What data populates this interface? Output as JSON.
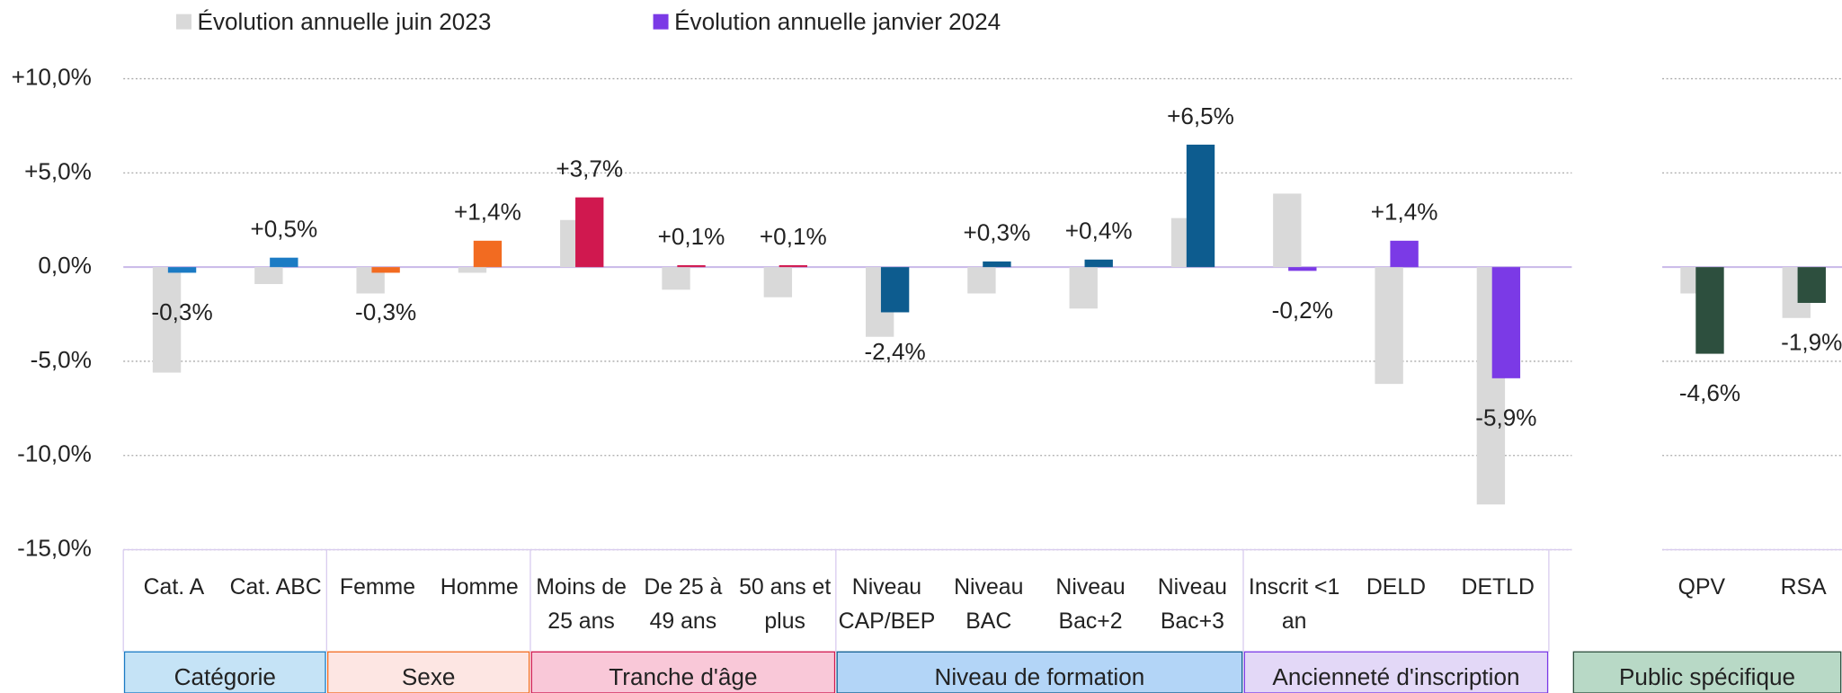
{
  "chart_data": {
    "type": "bar",
    "categories": [
      "Cat. A",
      "Cat. ABC",
      "Femme",
      "Homme",
      "Moins de 25 ans",
      "De 25 à 49 ans",
      "50 ans et plus",
      "Niveau CAP/BEP",
      "Niveau BAC",
      "Niveau Bac+2",
      "Niveau Bac+3",
      "Inscrit <1 an",
      "DELD",
      "DETLD",
      "QPV",
      "RSA"
    ],
    "series": [
      {
        "name": "Évolution annuelle juin 2023",
        "color": "#d9d9d9",
        "values": [
          -5.6,
          -0.9,
          -1.4,
          -0.3,
          2.5,
          -1.2,
          -1.6,
          -3.7,
          -1.4,
          -2.2,
          2.6,
          3.9,
          -6.2,
          -12.6,
          -1.4,
          -2.7
        ]
      },
      {
        "name": "Évolution annuelle janvier 2024",
        "color": "#7b3ae6",
        "values": [
          -0.3,
          0.5,
          -0.3,
          1.4,
          3.7,
          0.1,
          0.1,
          -2.4,
          0.3,
          0.4,
          6.5,
          -0.2,
          1.4,
          -5.9,
          -4.6,
          -1.9
        ],
        "value_labels": [
          "-0,3%",
          "+0,5%",
          "-0,3%",
          "+1,4%",
          "+3,7%",
          "+0,1%",
          "+0,1%",
          "-2,4%",
          "+0,3%",
          "+0,4%",
          "+6,5%",
          "-0,2%",
          "+1,4%",
          "-5,9%",
          "-4,6%",
          "-1,9%"
        ]
      }
    ],
    "groups": [
      {
        "name": "Catégorie",
        "color": "#1b7bc4",
        "fill": "#c5e3f6",
        "categories": [
          "Cat. A",
          "Cat. ABC"
        ]
      },
      {
        "name": "Sexe",
        "color": "#f26b21",
        "fill": "#fde6e3",
        "categories": [
          "Femme",
          "Homme"
        ]
      },
      {
        "name": "Tranche d'âge",
        "color": "#d0184f",
        "fill": "#f9c8d8",
        "categories": [
          "Moins de 25 ans",
          "De 25 à 49 ans",
          "50 ans et plus"
        ]
      },
      {
        "name": "Niveau de formation",
        "color": "#0d5c8f",
        "fill": "#b3d5f7",
        "categories": [
          "Niveau CAP/BEP",
          "Niveau BAC",
          "Niveau Bac+2",
          "Niveau Bac+3"
        ]
      },
      {
        "name": "Ancienneté d'inscription",
        "color": "#7b3ae6",
        "fill": "#e3d8f7",
        "categories": [
          "Inscrit <1 an",
          "DELD",
          "DETLD"
        ]
      },
      {
        "name": "Public spécifique",
        "color": "#2d4f3e",
        "fill": "#b8d9c6",
        "categories": [
          "QPV",
          "RSA"
        ]
      }
    ],
    "ylim": [
      -15,
      10
    ],
    "yticks": [
      {
        "value": 10,
        "label": "+10,0%"
      },
      {
        "value": 5,
        "label": "+5,0%"
      },
      {
        "value": 0,
        "label": "0,0%"
      },
      {
        "value": -5,
        "label": "-5,0%"
      },
      {
        "value": -10,
        "label": "-10,0%"
      },
      {
        "value": -15,
        "label": "-15,0%"
      }
    ],
    "grid": true
  }
}
